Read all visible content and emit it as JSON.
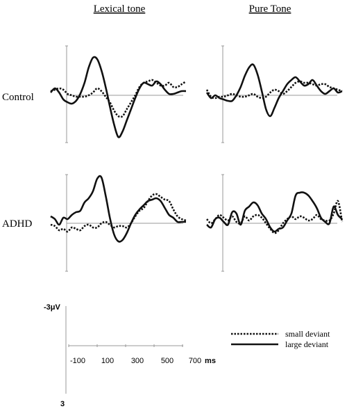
{
  "chart_data": {
    "type": "line",
    "column_titles": [
      "Lexical tone",
      "Pure Tone"
    ],
    "row_titles": [
      "Control",
      "ADHD"
    ],
    "x_unit": "ms",
    "x_ticks": [
      -100,
      100,
      300,
      500,
      700
    ],
    "y_ticks": [
      "-3μV",
      "3"
    ],
    "x_range": [
      -100,
      700
    ],
    "y_range_uV": [
      -3,
      3
    ],
    "y_axis_negative_up": true,
    "legend": {
      "position": "bottom-right",
      "entries": [
        {
          "label": "small deviant",
          "style": "dotted"
        },
        {
          "label": "large deviant",
          "style": "solid"
        }
      ]
    },
    "panels": [
      {
        "column": "Lexical tone",
        "row": "Control",
        "series": [
          {
            "name": "small deviant",
            "x": [
              -100,
              -75,
              -50,
              -25,
              0,
              25,
              50,
              75,
              100,
              125,
              150,
              175,
              200,
              225,
              250,
              275,
              300,
              325,
              350,
              375,
              400,
              425,
              450,
              475,
              500,
              525,
              550,
              575,
              600,
              625,
              650,
              675,
              700
            ],
            "y": [
              -0.3,
              -0.4,
              -0.5,
              -0.4,
              -0.1,
              0.0,
              0.1,
              0.1,
              0.1,
              0.0,
              -0.2,
              -0.5,
              -0.3,
              0.1,
              0.5,
              1.1,
              1.5,
              1.5,
              1.0,
              0.5,
              0.0,
              -0.6,
              -0.9,
              -1.0,
              -1.1,
              -0.9,
              -0.7,
              -0.7,
              -0.9,
              -0.6,
              -0.6,
              -0.8,
              -1.0
            ]
          },
          {
            "name": "large deviant",
            "x": [
              -100,
              -75,
              -50,
              -25,
              0,
              25,
              50,
              75,
              100,
              125,
              150,
              175,
              200,
              225,
              250,
              275,
              300,
              325,
              350,
              375,
              400,
              425,
              450,
              475,
              500,
              525,
              550,
              575,
              600,
              625,
              650,
              675,
              700
            ],
            "y": [
              -0.2,
              -0.5,
              -0.2,
              0.3,
              0.5,
              0.6,
              0.4,
              -0.1,
              -0.9,
              -2.0,
              -2.7,
              -2.6,
              -1.8,
              -0.6,
              0.8,
              2.1,
              3.0,
              2.6,
              1.8,
              1.0,
              0.2,
              -0.5,
              -0.9,
              -0.8,
              -0.7,
              -1.0,
              -0.8,
              -0.4,
              -0.1,
              -0.1,
              -0.2,
              -0.3,
              -0.3
            ]
          }
        ]
      },
      {
        "column": "Pure Tone",
        "row": "Control",
        "series": [
          {
            "name": "small deviant",
            "x": [
              -100,
              -75,
              -50,
              -25,
              0,
              25,
              50,
              75,
              100,
              125,
              150,
              175,
              200,
              225,
              250,
              275,
              300,
              325,
              350,
              375,
              400,
              425,
              450,
              475,
              500,
              525,
              550,
              575,
              600,
              625,
              650,
              675,
              700
            ],
            "y": [
              -0.4,
              0.1,
              0.2,
              0.1,
              0.1,
              0.0,
              -0.1,
              0.0,
              0.1,
              0.1,
              0.0,
              -0.1,
              0.1,
              0.2,
              0.1,
              -0.2,
              -0.4,
              -0.3,
              -0.1,
              -0.3,
              -0.6,
              -0.9,
              -1.0,
              -0.9,
              -0.9,
              -0.8,
              -0.7,
              -0.8,
              -0.8,
              -0.6,
              -0.5,
              -0.4,
              -0.3
            ]
          },
          {
            "name": "large deviant",
            "x": [
              -100,
              -75,
              -50,
              -25,
              0,
              25,
              50,
              75,
              100,
              125,
              150,
              175,
              200,
              225,
              250,
              275,
              300,
              325,
              350,
              375,
              400,
              425,
              450,
              475,
              500,
              525,
              550,
              575,
              600,
              625,
              650,
              675,
              700
            ],
            "y": [
              -0.2,
              0.2,
              0.0,
              0.2,
              0.3,
              0.4,
              0.4,
              0.0,
              -0.6,
              -1.4,
              -2.0,
              -2.2,
              -1.5,
              -0.3,
              1.0,
              1.5,
              0.9,
              0.2,
              -0.3,
              -0.8,
              -1.1,
              -1.3,
              -1.0,
              -0.7,
              -0.8,
              -1.1,
              -0.7,
              -0.3,
              -0.1,
              -0.3,
              -0.5,
              -0.2,
              -0.3
            ]
          }
        ]
      },
      {
        "column": "Lexical tone",
        "row": "ADHD",
        "series": [
          {
            "name": "small deviant",
            "x": [
              -100,
              -75,
              -50,
              -25,
              0,
              25,
              50,
              75,
              100,
              125,
              150,
              175,
              200,
              225,
              250,
              275,
              300,
              325,
              350,
              375,
              400,
              425,
              450,
              475,
              500,
              525,
              550,
              575,
              600,
              625,
              650,
              675,
              700
            ],
            "y": [
              0.1,
              0.2,
              0.5,
              0.4,
              0.6,
              0.3,
              0.4,
              0.5,
              0.2,
              0.1,
              0.3,
              0.3,
              0.0,
              -0.1,
              0.1,
              0.3,
              0.2,
              0.2,
              0.3,
              0.0,
              -0.5,
              -0.9,
              -1.1,
              -1.6,
              -2.0,
              -2.1,
              -1.9,
              -1.7,
              -1.6,
              -1.0,
              -0.5,
              -0.3,
              -0.2
            ]
          },
          {
            "name": "large deviant",
            "x": [
              -100,
              -75,
              -50,
              -25,
              0,
              25,
              50,
              75,
              100,
              125,
              150,
              175,
              200,
              225,
              250,
              275,
              300,
              325,
              350,
              375,
              400,
              425,
              450,
              475,
              500,
              525,
              550,
              575,
              600,
              625,
              650,
              675,
              700
            ],
            "y": [
              -0.5,
              -0.3,
              0.1,
              -0.4,
              -0.3,
              -0.6,
              -0.8,
              -0.9,
              -1.5,
              -1.8,
              -2.3,
              -3.2,
              -3.3,
              -2.0,
              -0.4,
              0.8,
              1.3,
              1.2,
              0.7,
              0.0,
              -0.6,
              -1.0,
              -1.3,
              -1.6,
              -1.7,
              -1.8,
              -1.6,
              -1.1,
              -0.6,
              -0.4,
              -0.1,
              -0.1,
              -0.1
            ]
          }
        ]
      },
      {
        "column": "Pure Tone",
        "row": "ADHD",
        "series": [
          {
            "name": "small deviant",
            "x": [
              -100,
              -75,
              -50,
              -25,
              0,
              25,
              50,
              75,
              100,
              125,
              150,
              175,
              200,
              225,
              250,
              275,
              300,
              325,
              350,
              375,
              400,
              425,
              450,
              475,
              500,
              525,
              550,
              575,
              600,
              625,
              650,
              675,
              700
            ],
            "y": [
              -0.3,
              0.0,
              -0.3,
              -0.6,
              -0.4,
              -0.2,
              -0.5,
              -0.1,
              0.0,
              -0.5,
              -0.2,
              -0.5,
              -0.6,
              -0.4,
              0.0,
              0.4,
              0.7,
              0.5,
              0.0,
              -0.3,
              -0.5,
              -0.3,
              -0.5,
              -0.4,
              -0.2,
              -0.3,
              -0.6,
              -0.3,
              -0.2,
              -0.2,
              -0.7,
              -1.6,
              -0.1
            ]
          },
          {
            "name": "large deviant",
            "x": [
              -100,
              -75,
              -50,
              -25,
              0,
              25,
              50,
              75,
              100,
              125,
              150,
              175,
              200,
              225,
              250,
              275,
              300,
              325,
              350,
              375,
              400,
              425,
              450,
              475,
              500,
              525,
              550,
              575,
              600,
              625,
              650,
              675,
              700
            ],
            "y": [
              0.1,
              0.3,
              -0.3,
              -0.4,
              -0.1,
              0.1,
              -0.8,
              -0.7,
              0.1,
              -0.9,
              -1.2,
              -1.5,
              -1.3,
              -0.7,
              -0.3,
              0.3,
              0.6,
              0.4,
              0.3,
              -0.2,
              -0.7,
              -2.0,
              -2.2,
              -2.2,
              -2.0,
              -1.6,
              -1.1,
              -0.4,
              -0.1,
              0.0,
              -1.2,
              -0.6,
              -0.3
            ]
          }
        ]
      }
    ]
  },
  "colors": {
    "trace": "#111111",
    "axis": "#999999"
  }
}
